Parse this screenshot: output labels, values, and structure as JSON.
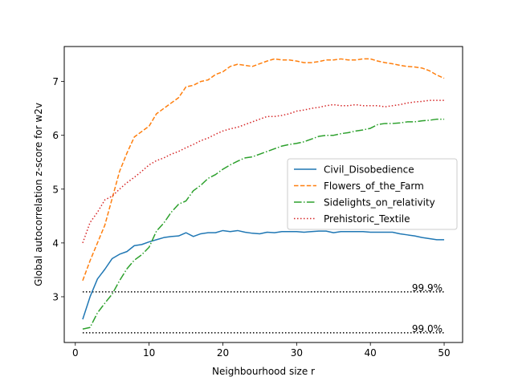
{
  "chart_data": {
    "type": "line",
    "title": "",
    "xlabel": "Neighbourhood size r",
    "ylabel": "Global autocorrelation z-score for w2v",
    "xlim": [
      -1.5,
      52.5
    ],
    "ylim": [
      2.15,
      7.65
    ],
    "xticks": [
      0,
      10,
      20,
      30,
      40,
      50
    ],
    "yticks": [
      3,
      4,
      5,
      6,
      7
    ],
    "grid": false,
    "legend_position": "center-right",
    "series": [
      {
        "name": "Civil_Disobedience",
        "color": "#1f77b4",
        "dash": "solid",
        "values": [
          2.58,
          3.0,
          3.33,
          3.51,
          3.71,
          3.79,
          3.84,
          3.95,
          3.97,
          4.02,
          4.06,
          4.1,
          4.12,
          4.13,
          4.19,
          4.12,
          4.17,
          4.19,
          4.19,
          4.23,
          4.21,
          4.23,
          4.2,
          4.18,
          4.17,
          4.2,
          4.19,
          4.21,
          4.21,
          4.21,
          4.2,
          4.21,
          4.22,
          4.22,
          4.19,
          4.21,
          4.21,
          4.21,
          4.21,
          4.2,
          4.2,
          4.2,
          4.2,
          4.17,
          4.15,
          4.13,
          4.1,
          4.08,
          4.06,
          4.06
        ]
      },
      {
        "name": "Flowers_of_the_Farm",
        "color": "#ff7f0e",
        "dash": "dashed",
        "values": [
          3.3,
          3.67,
          4.0,
          4.33,
          4.83,
          5.33,
          5.67,
          5.97,
          6.07,
          6.17,
          6.4,
          6.5,
          6.6,
          6.7,
          6.9,
          6.93,
          7.0,
          7.03,
          7.13,
          7.18,
          7.28,
          7.32,
          7.3,
          7.28,
          7.33,
          7.38,
          7.42,
          7.4,
          7.4,
          7.38,
          7.35,
          7.35,
          7.37,
          7.4,
          7.4,
          7.42,
          7.4,
          7.4,
          7.42,
          7.42,
          7.38,
          7.35,
          7.33,
          7.3,
          7.28,
          7.27,
          7.25,
          7.2,
          7.12,
          7.06
        ]
      },
      {
        "name": "Sidelights_on_relativity",
        "color": "#2ca02c",
        "dash": "dashdot",
        "values": [
          2.4,
          2.43,
          2.7,
          2.88,
          3.05,
          3.3,
          3.52,
          3.68,
          3.78,
          3.92,
          4.22,
          4.37,
          4.57,
          4.72,
          4.78,
          4.97,
          5.07,
          5.2,
          5.27,
          5.37,
          5.45,
          5.52,
          5.58,
          5.6,
          5.65,
          5.7,
          5.75,
          5.8,
          5.83,
          5.85,
          5.88,
          5.93,
          5.98,
          6.0,
          6.0,
          6.03,
          6.05,
          6.08,
          6.1,
          6.13,
          6.2,
          6.22,
          6.22,
          6.23,
          6.25,
          6.25,
          6.27,
          6.28,
          6.3,
          6.3
        ]
      },
      {
        "name": "Prehistoric_Textile",
        "color": "#d62728",
        "dash": "dotted",
        "values": [
          4.0,
          4.38,
          4.57,
          4.8,
          4.87,
          5.0,
          5.12,
          5.22,
          5.33,
          5.45,
          5.53,
          5.58,
          5.65,
          5.7,
          5.77,
          5.83,
          5.9,
          5.95,
          6.02,
          6.08,
          6.12,
          6.15,
          6.2,
          6.25,
          6.3,
          6.35,
          6.35,
          6.37,
          6.4,
          6.45,
          6.47,
          6.5,
          6.52,
          6.55,
          6.57,
          6.55,
          6.55,
          6.57,
          6.55,
          6.55,
          6.55,
          6.53,
          6.55,
          6.57,
          6.6,
          6.62,
          6.63,
          6.65,
          6.65,
          6.65
        ]
      }
    ],
    "x": [
      1,
      2,
      3,
      4,
      5,
      6,
      7,
      8,
      9,
      10,
      11,
      12,
      13,
      14,
      15,
      16,
      17,
      18,
      19,
      20,
      21,
      22,
      23,
      24,
      25,
      26,
      27,
      28,
      29,
      30,
      31,
      32,
      33,
      34,
      35,
      36,
      37,
      38,
      39,
      40,
      41,
      42,
      43,
      44,
      45,
      46,
      47,
      48,
      49,
      50
    ],
    "reference_lines": [
      {
        "y": 3.09,
        "label": "99.9%",
        "x_from": 1,
        "x_to": 50,
        "color": "#000000"
      },
      {
        "y": 2.33,
        "label": "99.0%",
        "x_from": 1,
        "x_to": 50,
        "color": "#000000"
      }
    ]
  }
}
